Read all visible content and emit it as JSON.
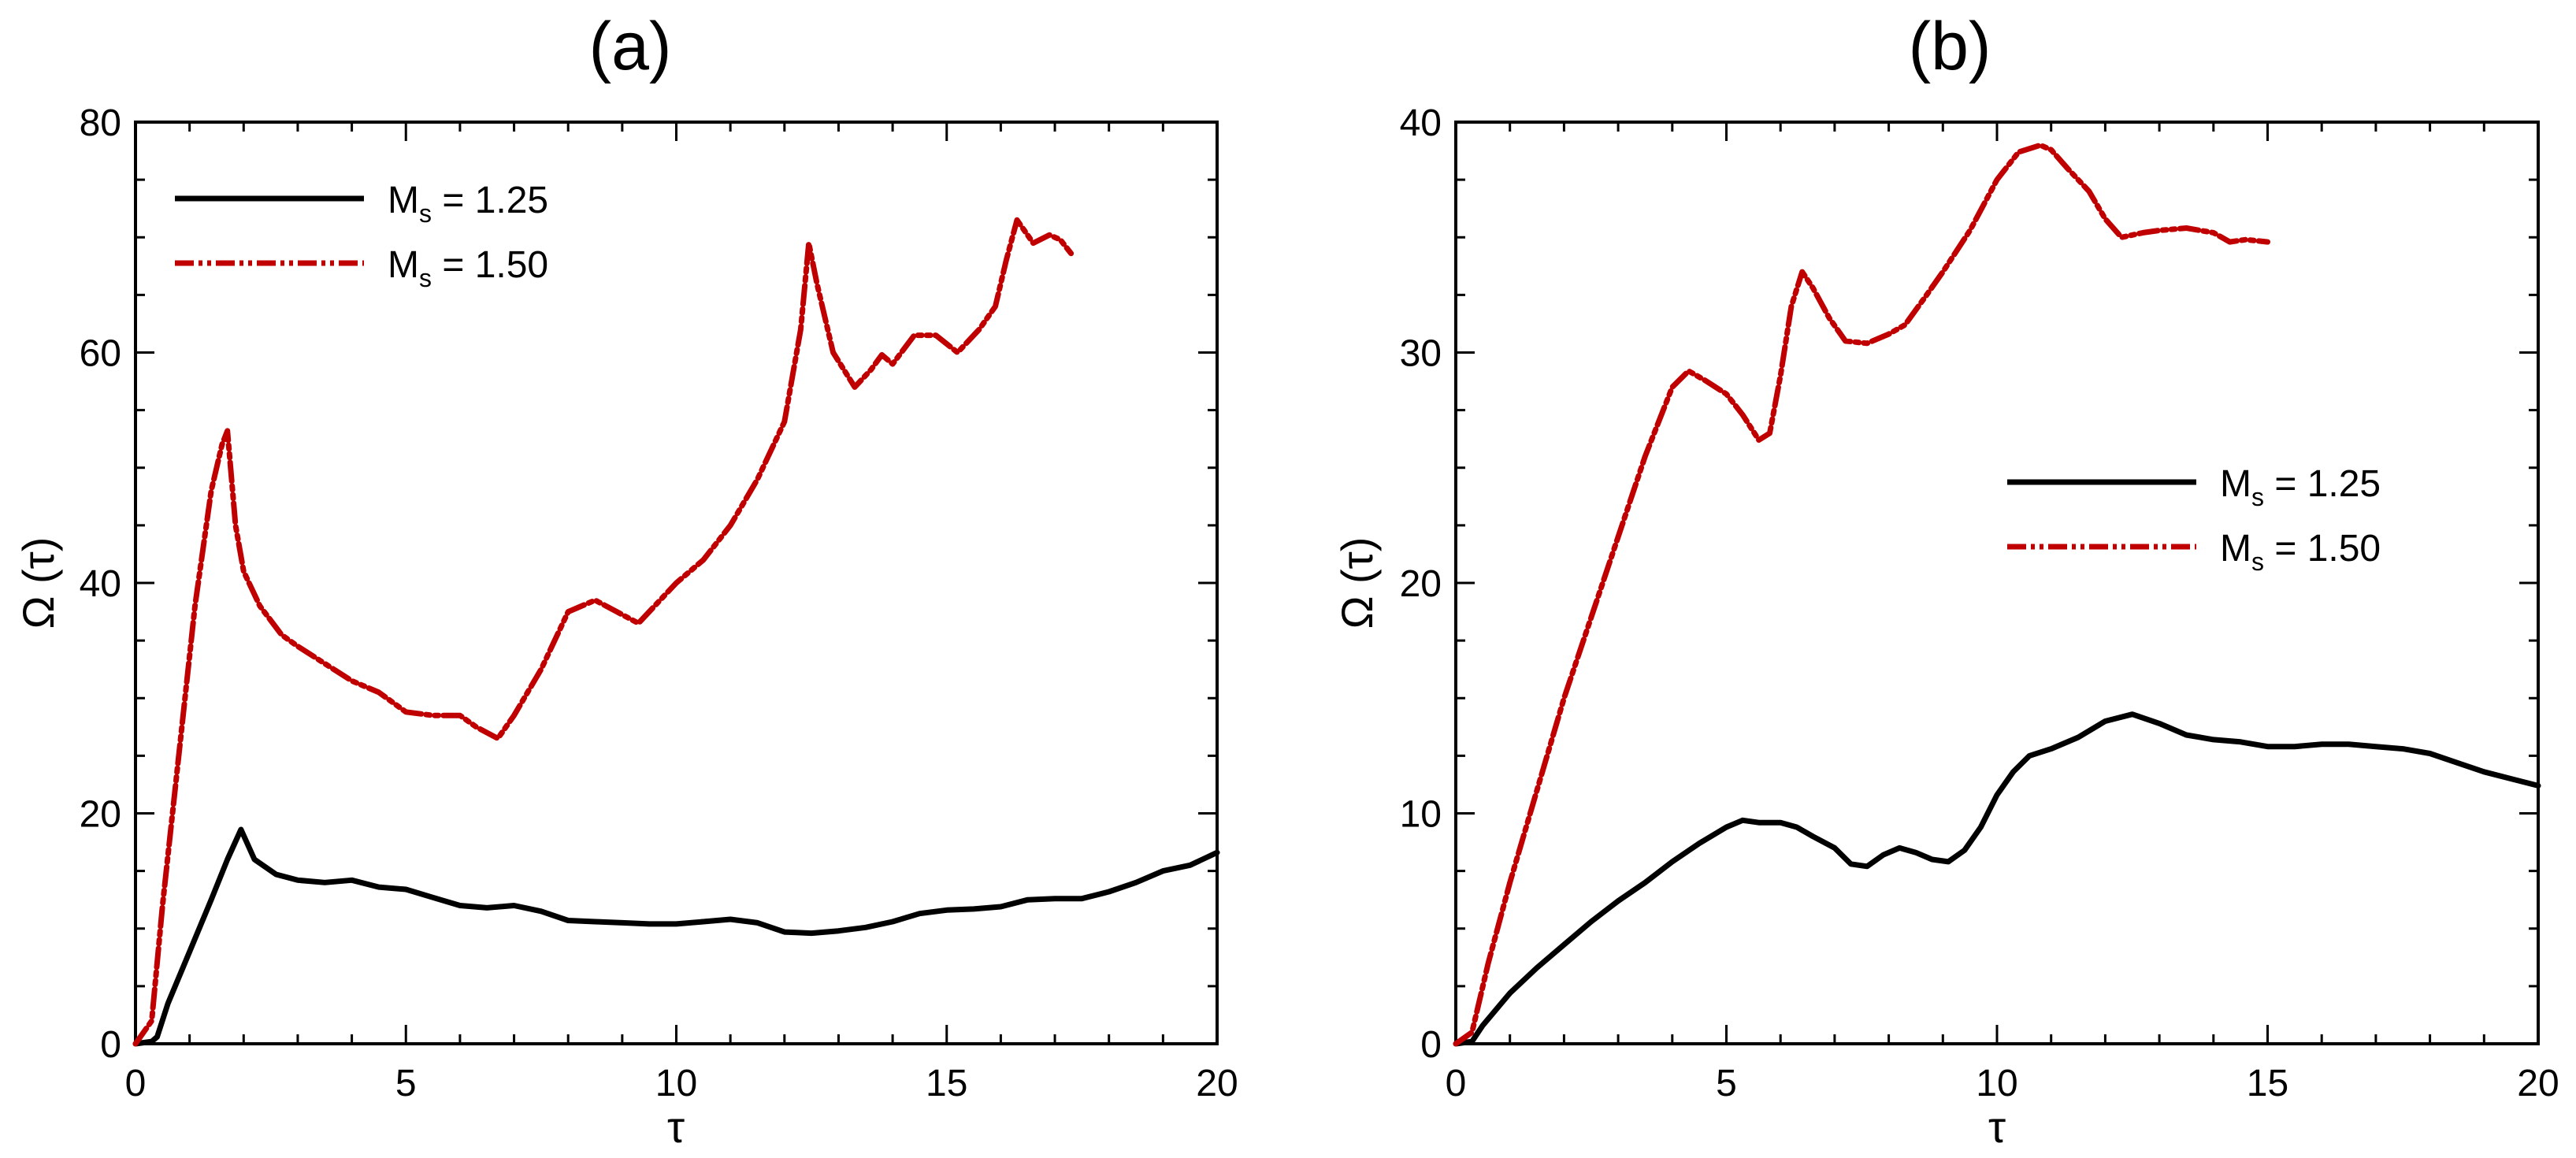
{
  "chart_data": [
    {
      "type": "line",
      "title": "(a)",
      "xlabel": "τ",
      "ylabel": "Ω (τ)",
      "xlim": [
        0,
        20
      ],
      "ylim": [
        0,
        80
      ],
      "xticks": [
        0,
        5,
        10,
        15,
        20
      ],
      "yticks": [
        0,
        20,
        40,
        60,
        80
      ],
      "grid": false,
      "legend": "top-left",
      "series": [
        {
          "name": "M_s = 1.25",
          "legend_label": "M",
          "legend_sub": "s",
          "legend_value": " = 1.25",
          "color": "#000000",
          "dash": "",
          "x": [
            0,
            0.3,
            0.4,
            0.6,
            1.0,
            1.4,
            1.7,
            1.95,
            2.2,
            2.6,
            3.0,
            3.5,
            4.0,
            4.5,
            5.0,
            5.5,
            6.0,
            6.5,
            7.0,
            7.5,
            8.0,
            8.5,
            9.0,
            9.5,
            10.0,
            10.5,
            11.0,
            11.5,
            12.0,
            12.5,
            13.0,
            13.5,
            14.0,
            14.5,
            15.0,
            15.5,
            16.0,
            16.5,
            17.0,
            17.5,
            18.0,
            18.5,
            19.0,
            19.5,
            20.0
          ],
          "y": [
            0,
            0.2,
            0.6,
            3.5,
            8.0,
            12.5,
            16.0,
            18.6,
            16.0,
            14.7,
            14.2,
            14.0,
            14.2,
            13.6,
            13.4,
            12.7,
            12.0,
            11.8,
            12.0,
            11.5,
            10.7,
            10.6,
            10.5,
            10.4,
            10.4,
            10.6,
            10.8,
            10.5,
            9.7,
            9.6,
            9.8,
            10.1,
            10.6,
            11.3,
            11.6,
            11.7,
            11.9,
            12.5,
            12.6,
            12.6,
            13.2,
            14.0,
            15.0,
            15.5,
            16.6
          ]
        },
        {
          "name": "M_s = 1.50",
          "legend_label": "M",
          "legend_sub": "s",
          "legend_value": " = 1.50",
          "color": "#c00000",
          "dash": "24 6 5 6 5 6",
          "x": [
            0,
            0.3,
            0.5,
            0.8,
            1.1,
            1.4,
            1.6,
            1.7,
            1.85,
            2.0,
            2.3,
            2.7,
            3.0,
            3.5,
            4.0,
            4.5,
            5.0,
            5.5,
            6.0,
            6.3,
            6.7,
            7.0,
            7.5,
            8.0,
            8.5,
            8.9,
            9.3,
            9.7,
            10.0,
            10.5,
            11.0,
            11.5,
            12.0,
            12.3,
            12.45,
            12.6,
            12.9,
            13.3,
            13.6,
            13.8,
            14.0,
            14.4,
            14.8,
            15.2,
            15.6,
            15.9,
            16.1,
            16.3,
            16.6,
            16.9,
            17.1,
            17.3
          ],
          "y": [
            0,
            2.0,
            12.0,
            25.0,
            38.0,
            48.0,
            52.0,
            53.2,
            45.0,
            41.0,
            38.0,
            35.5,
            34.5,
            33.0,
            31.5,
            30.5,
            28.8,
            28.5,
            28.5,
            27.5,
            26.5,
            28.5,
            32.5,
            37.5,
            38.5,
            37.5,
            36.5,
            38.5,
            40.0,
            42.0,
            45.0,
            49.0,
            54.0,
            62.0,
            69.5,
            66.0,
            60.0,
            57.0,
            58.5,
            59.8,
            59.0,
            61.5,
            61.5,
            60.0,
            62.0,
            64.0,
            68.0,
            71.5,
            69.5,
            70.2,
            69.8,
            68.6
          ]
        }
      ]
    },
    {
      "type": "line",
      "title": "(b)",
      "xlabel": "τ",
      "ylabel": "Ω (τ)",
      "xlim": [
        0,
        20
      ],
      "ylim": [
        0,
        40
      ],
      "xticks": [
        0,
        5,
        10,
        15,
        20
      ],
      "yticks": [
        0,
        10,
        20,
        30,
        40
      ],
      "grid": false,
      "legend": "center-right",
      "series": [
        {
          "name": "M_s = 1.25",
          "legend_label": "M",
          "legend_sub": "s",
          "legend_value": " = 1.25",
          "color": "#000000",
          "dash": "",
          "x": [
            0,
            0.3,
            0.5,
            1.0,
            1.5,
            2.0,
            2.5,
            3.0,
            3.5,
            4.0,
            4.5,
            5.0,
            5.3,
            5.6,
            6.0,
            6.3,
            6.6,
            7.0,
            7.3,
            7.6,
            7.9,
            8.2,
            8.5,
            8.8,
            9.1,
            9.4,
            9.7,
            10.0,
            10.3,
            10.6,
            11.0,
            11.5,
            12.0,
            12.5,
            13.0,
            13.5,
            14.0,
            14.5,
            15.0,
            15.5,
            16.0,
            16.5,
            17.0,
            17.5,
            18.0,
            18.5,
            19.0,
            19.5,
            20.0
          ],
          "y": [
            0,
            0.1,
            0.8,
            2.2,
            3.3,
            4.3,
            5.3,
            6.2,
            7.0,
            7.9,
            8.7,
            9.4,
            9.7,
            9.6,
            9.6,
            9.4,
            9.0,
            8.5,
            7.8,
            7.7,
            8.2,
            8.5,
            8.3,
            8.0,
            7.9,
            8.4,
            9.4,
            10.8,
            11.8,
            12.5,
            12.8,
            13.3,
            14.0,
            14.3,
            13.9,
            13.4,
            13.2,
            13.1,
            12.9,
            12.9,
            13.0,
            13.0,
            12.9,
            12.8,
            12.6,
            12.2,
            11.8,
            11.5,
            11.2
          ]
        },
        {
          "name": "M_s = 1.50",
          "legend_label": "M",
          "legend_sub": "s",
          "legend_value": " = 1.50",
          "color": "#c00000",
          "dash": "24 6 5 6 5 6",
          "x": [
            0,
            0.3,
            0.6,
            1.0,
            1.5,
            2.0,
            2.5,
            3.0,
            3.5,
            4.0,
            4.3,
            4.6,
            5.0,
            5.3,
            5.6,
            5.8,
            6.0,
            6.2,
            6.4,
            6.6,
            6.9,
            7.2,
            7.6,
            8.0,
            8.3,
            8.7,
            9.0,
            9.5,
            10.0,
            10.4,
            10.8,
            11.0,
            11.3,
            11.7,
            12.0,
            12.3,
            12.7,
            13.0,
            13.5,
            14.0,
            14.3,
            14.6,
            15.0
          ],
          "y": [
            0,
            0.5,
            3.5,
            7.0,
            11.0,
            15.0,
            18.5,
            22.0,
            25.5,
            28.5,
            29.2,
            28.8,
            28.2,
            27.3,
            26.2,
            26.5,
            29.0,
            32.0,
            33.5,
            32.8,
            31.5,
            30.5,
            30.4,
            30.8,
            31.2,
            32.5,
            33.5,
            35.3,
            37.5,
            38.7,
            39.0,
            38.8,
            38.0,
            37.0,
            35.8,
            35.0,
            35.2,
            35.3,
            35.4,
            35.2,
            34.8,
            34.9,
            34.8
          ]
        }
      ]
    }
  ]
}
